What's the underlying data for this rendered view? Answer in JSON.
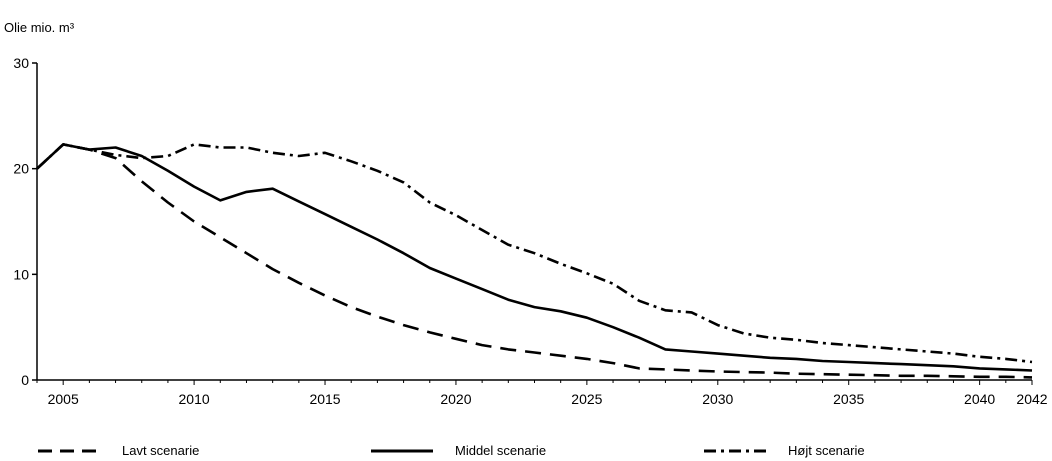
{
  "chart_data": {
    "type": "line",
    "ylabel": "Olie mio. m³",
    "xlabel": "",
    "title": "",
    "xlim": [
      2004,
      2042
    ],
    "ylim": [
      0,
      30
    ],
    "x_ticks": [
      2005,
      2010,
      2015,
      2020,
      2025,
      2030,
      2035,
      2040,
      2042
    ],
    "y_ticks": [
      0,
      10,
      20,
      30
    ],
    "grid": false,
    "legend_position": "bottom",
    "x": [
      2004,
      2005,
      2006,
      2007,
      2008,
      2009,
      2010,
      2011,
      2012,
      2013,
      2014,
      2015,
      2016,
      2017,
      2018,
      2019,
      2020,
      2021,
      2022,
      2023,
      2024,
      2025,
      2026,
      2027,
      2028,
      2029,
      2030,
      2031,
      2032,
      2033,
      2034,
      2035,
      2036,
      2037,
      2038,
      2039,
      2040,
      2041,
      2042
    ],
    "series": [
      {
        "name": "Lavt scenarie",
        "style": "dashed",
        "values": [
          20,
          22.3,
          21.8,
          21.0,
          18.8,
          16.8,
          15.0,
          13.5,
          12.0,
          10.5,
          9.2,
          8.0,
          6.9,
          6.0,
          5.2,
          4.5,
          3.9,
          3.3,
          2.9,
          2.6,
          2.3,
          2.0,
          1.6,
          1.1,
          1.0,
          0.9,
          0.8,
          0.75,
          0.7,
          0.6,
          0.55,
          0.5,
          0.45,
          0.4,
          0.4,
          0.35,
          0.3,
          0.3,
          0.25
        ]
      },
      {
        "name": "Middel scenarie",
        "style": "solid",
        "values": [
          20,
          22.3,
          21.8,
          22.0,
          21.2,
          19.8,
          18.3,
          17.0,
          17.8,
          18.1,
          16.9,
          15.7,
          14.5,
          13.3,
          12.0,
          10.6,
          9.6,
          8.6,
          7.6,
          6.9,
          6.5,
          5.9,
          5.0,
          4.0,
          2.9,
          2.7,
          2.5,
          2.3,
          2.1,
          2.0,
          1.8,
          1.7,
          1.6,
          1.5,
          1.4,
          1.3,
          1.1,
          1.0,
          0.9
        ]
      },
      {
        "name": "Højt scenarie",
        "style": "dashdot",
        "values": [
          20,
          22.3,
          21.8,
          21.3,
          21.0,
          21.2,
          22.3,
          22.0,
          22.0,
          21.5,
          21.2,
          21.5,
          20.7,
          19.8,
          18.7,
          16.8,
          15.6,
          14.2,
          12.8,
          12.0,
          11.0,
          10.1,
          9.1,
          7.5,
          6.6,
          6.4,
          5.2,
          4.4,
          4.0,
          3.8,
          3.5,
          3.3,
          3.1,
          2.9,
          2.7,
          2.5,
          2.2,
          2.0,
          1.7
        ]
      }
    ]
  }
}
